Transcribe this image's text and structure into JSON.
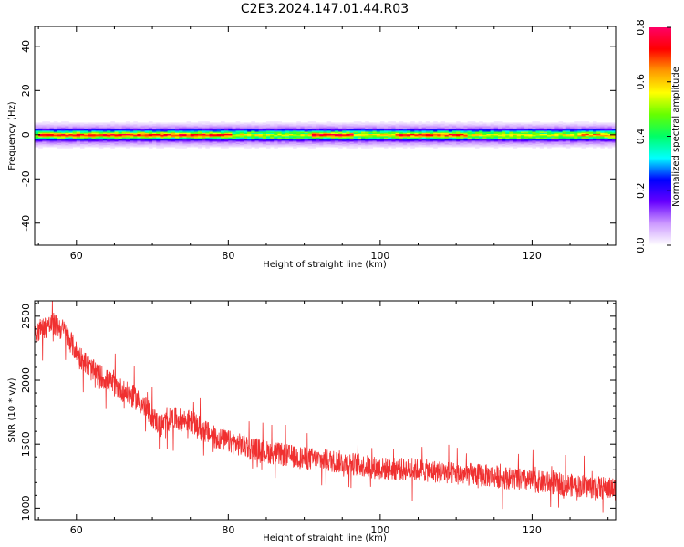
{
  "figure": {
    "title": "C2E3.2024.147.01.44.R03"
  },
  "chart_data": [
    {
      "type": "heatmap",
      "xlabel": "Height of straight line (km)",
      "ylabel": "Frequency (Hz)",
      "xlim": [
        54.5,
        131
      ],
      "ylim": [
        -50,
        49
      ],
      "xticks": [
        60,
        80,
        100,
        120
      ],
      "yticks": [
        -40,
        -20,
        0,
        20,
        40
      ],
      "grid": false,
      "band": {
        "center_hz": 0,
        "profile_hz": [
          {
            "hz": 0,
            "amp": 0.8
          },
          {
            "hz": 1,
            "amp": 0.5
          },
          {
            "hz": 2,
            "amp": 0.25
          },
          {
            "hz": 3,
            "amp": 0.1
          },
          {
            "hz": 5,
            "amp": 0.03
          }
        ],
        "hotspots_km": [
          {
            "from": 55,
            "to": 80,
            "amp": 0.75
          },
          {
            "from": 91,
            "to": 96,
            "amp": 0.8
          },
          {
            "from": 102,
            "to": 111,
            "amp": 0.7
          },
          {
            "from": 126,
            "to": 131,
            "amp": 0.55
          }
        ]
      },
      "colorbar": {
        "label": "Normalized spectral amplitude",
        "range": [
          0,
          0.8
        ],
        "ticks": [
          0.0,
          0.2,
          0.4,
          0.6,
          0.8
        ],
        "colors": [
          "#ffffff",
          "#cc99ff",
          "#6600ff",
          "#0000ff",
          "#00ffff",
          "#00ff66",
          "#66ff00",
          "#ffff00",
          "#ff9900",
          "#ff0000",
          "#ff0066"
        ]
      }
    },
    {
      "type": "line",
      "xlabel": "Height of straight line (km)",
      "ylabel": "SNR (10 * v/v)",
      "xlim": [
        54.5,
        131
      ],
      "ylim": [
        910,
        2620
      ],
      "xticks": [
        60,
        80,
        100,
        120
      ],
      "yticks": [
        1000,
        1500,
        2000,
        2500
      ],
      "grid": false,
      "series": [
        {
          "color": "#f03030",
          "trend_x": [
            54.5,
            57,
            58.5,
            60,
            62,
            65,
            68,
            70,
            71,
            72.5,
            75,
            78,
            80,
            85,
            90,
            95,
            100,
            105,
            110,
            115,
            120,
            125,
            131
          ],
          "trend_y": [
            2380,
            2440,
            2380,
            2220,
            2080,
            1960,
            1850,
            1720,
            1640,
            1700,
            1680,
            1560,
            1520,
            1440,
            1390,
            1360,
            1310,
            1300,
            1270,
            1250,
            1210,
            1180,
            1150
          ],
          "noise_amplitude": 90
        }
      ]
    }
  ]
}
